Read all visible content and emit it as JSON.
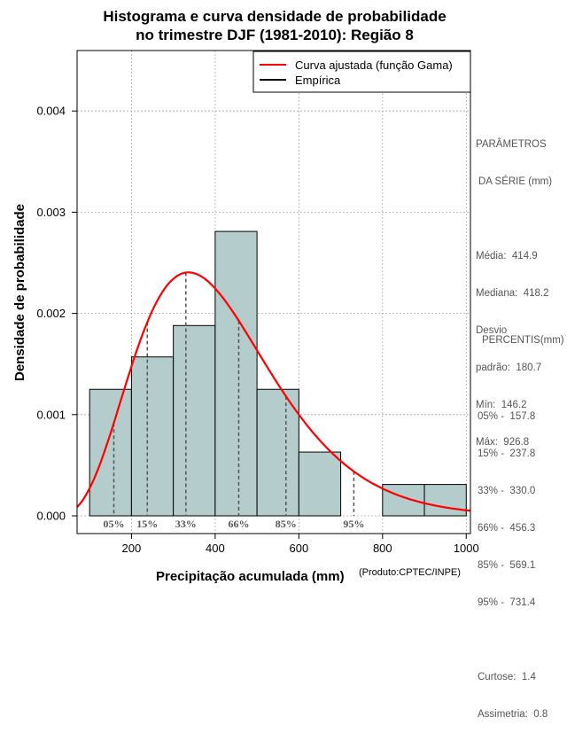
{
  "title": {
    "line1": "Histograma e curva densidade de probabilidade",
    "line2": "no trimestre DJF (1981-2010): Região 8"
  },
  "credit": "(Produto:CPTEC/INPE)",
  "stats_panel": {
    "heading1": "PARÂMETROS",
    "heading2": "DA SÉRIE (mm)",
    "media": "Média:  414.9",
    "mediana": "Mediana:  418.2",
    "desvio1": "Desvio",
    "desvio2": "padrão:  180.7",
    "min": "Mín:  146.2",
    "max": "Máx:  926.8"
  },
  "percentile_panel": {
    "heading": "PERCENTIS(mm)",
    "p05": "05% -  157.8",
    "p15": "15% -  237.8",
    "p33": "33% -  330.0",
    "p66": "66% -  456.3",
    "p85": "85% -  569.1",
    "p95": "95% -  731.4",
    "curtose": "Curtose:  1.4",
    "assimetria": "Assimetria:  0.8"
  },
  "chart_data": {
    "type": "histogram",
    "title": "Histograma e curva densidade de probabilidade no trimestre DJF (1981-2010): Região 8",
    "xlabel": "Precipitação acumulada (mm)",
    "ylabel": "Densidade de probabilidade",
    "xlim": [
      70,
      1010
    ],
    "ylim": [
      0,
      0.0046
    ],
    "xticks": [
      200,
      400,
      600,
      800,
      1000
    ],
    "yticks": [
      0.0,
      0.001,
      0.002,
      0.003,
      0.004
    ],
    "ytick_labels": [
      "0.000",
      "0.001",
      "0.002",
      "0.003",
      "0.004"
    ],
    "grid": true,
    "bars": [
      {
        "x0": 100,
        "x1": 200,
        "density": 0.00125
      },
      {
        "x0": 200,
        "x1": 300,
        "density": 0.00157
      },
      {
        "x0": 300,
        "x1": 400,
        "density": 0.00188
      },
      {
        "x0": 400,
        "x1": 500,
        "density": 0.00281
      },
      {
        "x0": 500,
        "x1": 600,
        "density": 0.00125
      },
      {
        "x0": 600,
        "x1": 700,
        "density": 0.00063
      },
      {
        "x0": 700,
        "x1": 800,
        "density": 0.0
      },
      {
        "x0": 800,
        "x1": 900,
        "density": 0.00031
      },
      {
        "x0": 900,
        "x1": 1000,
        "density": 0.00031
      }
    ],
    "curve": {
      "name": "Curva ajustada (função Gama)",
      "color": "#ff0000",
      "distribution": "gamma",
      "mean": 414.9,
      "sd": 180.7
    },
    "legend": {
      "position": "top-right",
      "entries": [
        {
          "label": "Curva ajustada (função Gama)",
          "color": "#ff0000"
        },
        {
          "label": "Empírica",
          "color": "#000000"
        }
      ]
    },
    "percentiles": [
      {
        "label": "05%",
        "value": 157.8
      },
      {
        "label": "15%",
        "value": 237.8
      },
      {
        "label": "33%",
        "value": 330.0
      },
      {
        "label": "66%",
        "value": 456.3
      },
      {
        "label": "85%",
        "value": 569.1
      },
      {
        "label": "95%",
        "value": 731.4
      }
    ],
    "colors": {
      "bar_fill": "#b4cccc",
      "bar_stroke": "#000000",
      "grid": "#aaaaaa",
      "percentile_line": "#555555",
      "percentile_label": "#555555"
    }
  }
}
